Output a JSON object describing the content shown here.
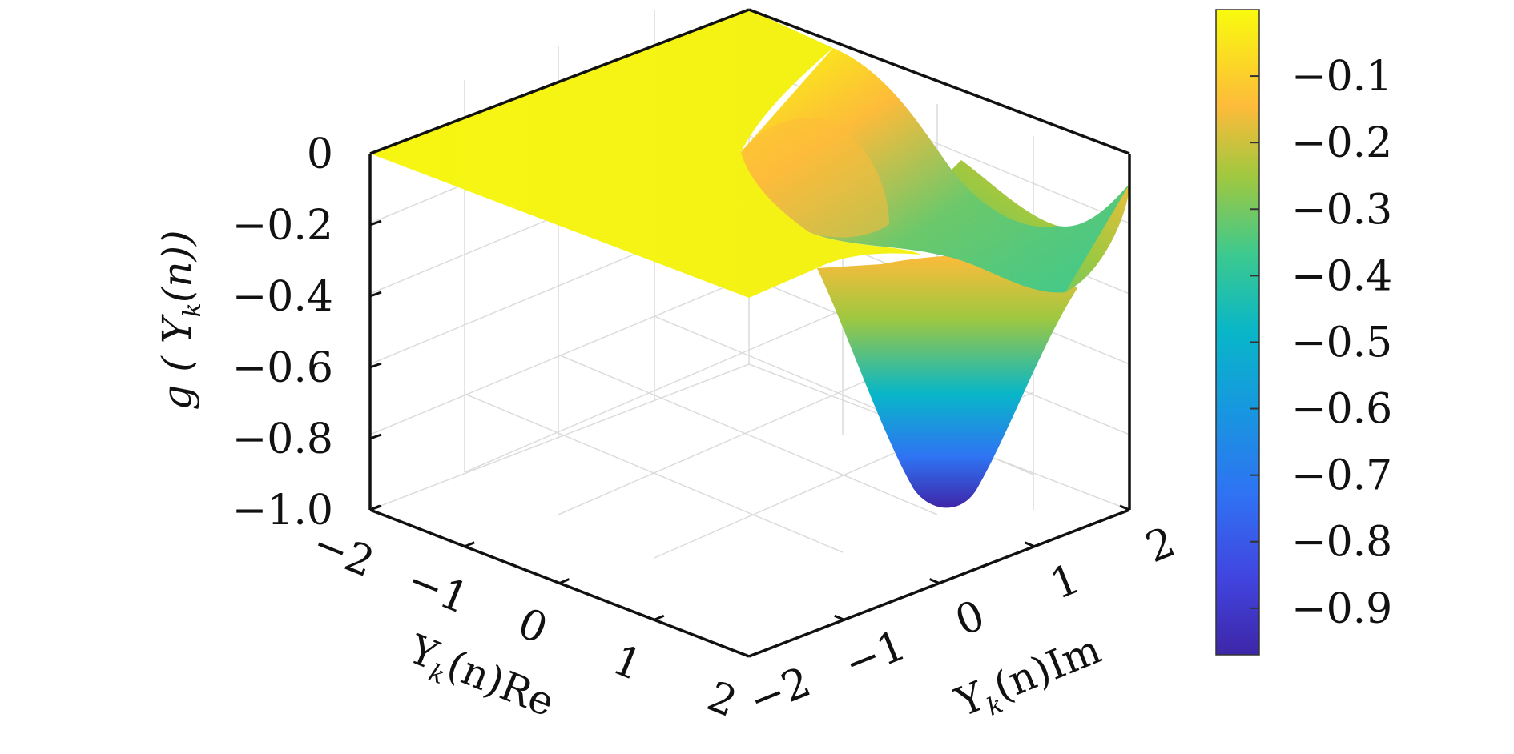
{
  "chart_data": {
    "type": "surface",
    "title": "",
    "surface": {
      "x_range": [
        -2,
        2
      ],
      "y_range": [
        -2,
        2
      ],
      "z_range": [
        -1.0,
        0
      ],
      "min_value": -0.97,
      "min_at": {
        "x": 2,
        "y": 0
      },
      "samples": [
        {
          "x": -2,
          "y": -2,
          "z": 0
        },
        {
          "x": -2,
          "y": 2,
          "z": 0
        },
        {
          "x": 0,
          "y": -2,
          "z": 0
        },
        {
          "x": 0,
          "y": 2,
          "z": 0
        },
        {
          "x": 0,
          "y": 0,
          "z": -0.28
        },
        {
          "x": 1,
          "y": -2,
          "z": -0.02
        },
        {
          "x": 1,
          "y": 0,
          "z": -0.7
        },
        {
          "x": 1,
          "y": 2,
          "z": -0.05
        },
        {
          "x": 2,
          "y": -2,
          "z": -0.32
        },
        {
          "x": 2,
          "y": -1,
          "z": -0.75
        },
        {
          "x": 2,
          "y": 0,
          "z": -0.97
        },
        {
          "x": 2,
          "y": 1,
          "z": -0.55
        },
        {
          "x": 2,
          "y": 2,
          "z": -0.08
        }
      ]
    },
    "z_axis": {
      "label": "g ( Y",
      "label_sub": "k",
      "label_tail": "(n))",
      "ticks": [
        "0",
        "−0.2",
        "−0.4",
        "−0.6",
        "−0.8",
        "−1.0"
      ],
      "tick_values": [
        0,
        -0.2,
        -0.4,
        -0.6,
        -0.8,
        -1.0
      ]
    },
    "x_axis": {
      "label": "Y",
      "label_sub": "k",
      "label_tail": "(n)Re",
      "ticks": [
        "−2",
        "−1",
        "0",
        "1",
        "2"
      ],
      "tick_values": [
        -2,
        -1,
        0,
        1,
        2
      ]
    },
    "y_axis": {
      "label": "Y",
      "label_sub": "k",
      "label_tail": "(n)Im",
      "ticks": [
        "−2",
        "−1",
        "0",
        "1",
        "2"
      ],
      "tick_values": [
        -2,
        -1,
        0,
        1,
        2
      ]
    },
    "colorbar": {
      "ticks": [
        "−0.1",
        "−0.2",
        "−0.3",
        "−0.4",
        "−0.5",
        "−0.6",
        "−0.7",
        "−0.8",
        "−0.9"
      ],
      "tick_values": [
        -0.1,
        -0.2,
        -0.3,
        -0.4,
        -0.5,
        -0.6,
        -0.7,
        -0.8,
        -0.9
      ],
      "range": [
        -0.97,
        0
      ],
      "colormap": "parula"
    },
    "grid": true,
    "colors": {
      "yellow": "#f9fb0e",
      "orange": "#fdbb3a",
      "green": "#5ec962",
      "teal": "#12b7c9",
      "blue": "#2e6df4",
      "indigo": "#3e26a8"
    }
  }
}
